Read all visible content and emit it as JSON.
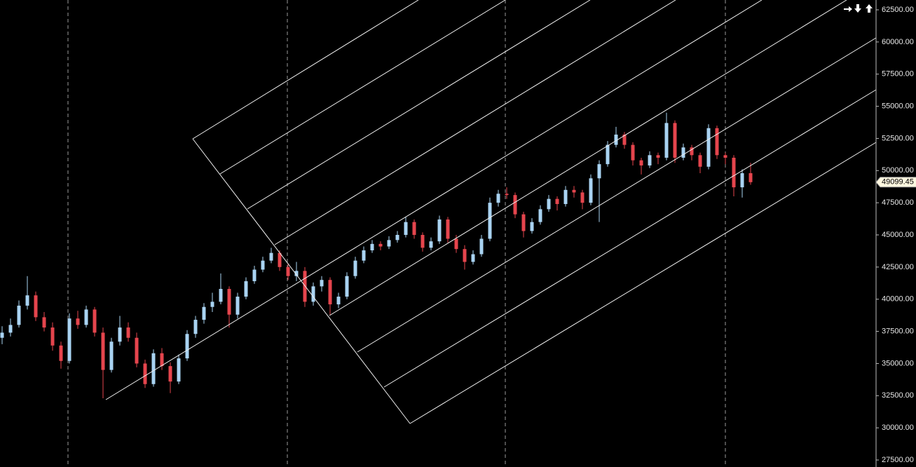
{
  "chart_data": {
    "type": "candlestick",
    "up_color": "#a9d3f2",
    "down_color": "#e5454d",
    "ylim": [
      26955,
      63263
    ],
    "yticks": [
      {
        "value": 27500,
        "label": "27500.00"
      },
      {
        "value": 30000,
        "label": "30000.00"
      },
      {
        "value": 32500,
        "label": "32500.00"
      },
      {
        "value": 35000,
        "label": "35000.00"
      },
      {
        "value": 37500,
        "label": "37500.00"
      },
      {
        "value": 40000,
        "label": "40000.00"
      },
      {
        "value": 42500,
        "label": "42500.00"
      },
      {
        "value": 45000,
        "label": "45000.00"
      },
      {
        "value": 47500,
        "label": "47500.00"
      },
      {
        "value": 50000,
        "label": "50000.00"
      },
      {
        "value": 52500,
        "label": "52500.00"
      },
      {
        "value": 55000,
        "label": "55000.00"
      },
      {
        "value": 57500,
        "label": "57500.00"
      },
      {
        "value": 60000,
        "label": "60000.00"
      },
      {
        "value": 62500,
        "label": "62500.00"
      }
    ],
    "candles": [
      [
        37000,
        37900,
        36500,
        37400
      ],
      [
        37400,
        38500,
        37100,
        38000
      ],
      [
        38000,
        39900,
        37800,
        39500
      ],
      [
        39500,
        41800,
        39200,
        40300
      ],
      [
        40300,
        40600,
        38300,
        38600
      ],
      [
        38600,
        39000,
        37500,
        37800
      ],
      [
        37800,
        38200,
        36000,
        36400
      ],
      [
        36400,
        36700,
        34600,
        35200
      ],
      [
        35200,
        38900,
        35000,
        38500
      ],
      [
        38500,
        39100,
        37700,
        38000
      ],
      [
        38000,
        39500,
        37800,
        39200
      ],
      [
        39200,
        39400,
        37100,
        37400
      ],
      [
        37400,
        37800,
        32300,
        34500
      ],
      [
        34500,
        37000,
        34300,
        36700
      ],
      [
        36700,
        38700,
        36400,
        37800
      ],
      [
        37800,
        38200,
        36700,
        37000
      ],
      [
        37000,
        37400,
        34700,
        35000
      ],
      [
        35000,
        35300,
        33100,
        33400
      ],
      [
        33400,
        36100,
        33200,
        35800
      ],
      [
        35800,
        36200,
        34500,
        34800
      ],
      [
        34800,
        35100,
        32700,
        33600
      ],
      [
        33600,
        35700,
        33400,
        35400
      ],
      [
        35400,
        37600,
        35200,
        37300
      ],
      [
        37300,
        38700,
        37000,
        38400
      ],
      [
        38400,
        39700,
        38100,
        39400
      ],
      [
        39400,
        40500,
        39000,
        39800
      ],
      [
        39800,
        42000,
        39600,
        40800
      ],
      [
        40800,
        41000,
        37800,
        38800
      ],
      [
        38800,
        40500,
        38500,
        40200
      ],
      [
        40200,
        41700,
        40000,
        41400
      ],
      [
        41400,
        42600,
        41200,
        42300
      ],
      [
        42300,
        43300,
        42100,
        43000
      ],
      [
        43000,
        44000,
        42800,
        43600
      ],
      [
        43600,
        43800,
        42200,
        42500
      ],
      [
        42500,
        42800,
        41500,
        41800
      ],
      [
        41800,
        42900,
        41400,
        42200
      ],
      [
        42200,
        42500,
        39400,
        39800
      ],
      [
        39800,
        41300,
        39500,
        41000
      ],
      [
        41000,
        41800,
        40600,
        41500
      ],
      [
        41500,
        41700,
        38800,
        39600
      ],
      [
        39600,
        40500,
        39300,
        40200
      ],
      [
        40200,
        42100,
        40000,
        41800
      ],
      [
        41800,
        43300,
        41600,
        43000
      ],
      [
        43000,
        44100,
        42800,
        43800
      ],
      [
        43800,
        44600,
        43600,
        44300
      ],
      [
        44300,
        44500,
        43800,
        44100
      ],
      [
        44100,
        44900,
        43900,
        44600
      ],
      [
        44600,
        45300,
        44400,
        45000
      ],
      [
        45000,
        46400,
        44800,
        46000
      ],
      [
        46000,
        46200,
        44700,
        45000
      ],
      [
        45000,
        45200,
        43700,
        44000
      ],
      [
        44000,
        44800,
        43800,
        44500
      ],
      [
        44500,
        46500,
        44300,
        46200
      ],
      [
        46200,
        46400,
        44400,
        44700
      ],
      [
        44700,
        45000,
        43600,
        43900
      ],
      [
        43900,
        44200,
        42300,
        42900
      ],
      [
        42900,
        43800,
        42700,
        43500
      ],
      [
        43500,
        45000,
        43300,
        44700
      ],
      [
        44700,
        47900,
        44500,
        47500
      ],
      [
        47500,
        48500,
        47200,
        48200
      ],
      [
        48200,
        48700,
        47800,
        48100
      ],
      [
        48100,
        48300,
        46300,
        46600
      ],
      [
        46600,
        46800,
        44800,
        45300
      ],
      [
        45300,
        46300,
        45100,
        46000
      ],
      [
        46000,
        47300,
        45800,
        47000
      ],
      [
        47000,
        48100,
        46800,
        47800
      ],
      [
        47800,
        48000,
        46900,
        47400
      ],
      [
        47400,
        48800,
        47200,
        48500
      ],
      [
        48500,
        48800,
        47900,
        48300
      ],
      [
        48300,
        48500,
        47000,
        47500
      ],
      [
        47500,
        49700,
        47300,
        49400
      ],
      [
        49400,
        50800,
        46000,
        50500
      ],
      [
        50500,
        52300,
        50300,
        52000
      ],
      [
        52000,
        53400,
        51800,
        52800
      ],
      [
        52800,
        53000,
        51700,
        52000
      ],
      [
        52000,
        52200,
        50400,
        50800
      ],
      [
        50800,
        51000,
        49700,
        50400
      ],
      [
        50400,
        51500,
        50200,
        51200
      ],
      [
        51200,
        51400,
        50500,
        51000
      ],
      [
        51000,
        54500,
        50800,
        53700
      ],
      [
        53700,
        53900,
        50600,
        51000
      ],
      [
        51000,
        52100,
        50800,
        51800
      ],
      [
        51800,
        52000,
        50800,
        51200
      ],
      [
        51200,
        51400,
        49800,
        50300
      ],
      [
        50300,
        53600,
        50100,
        53300
      ],
      [
        53300,
        53500,
        50900,
        51200
      ],
      [
        51200,
        51400,
        50500,
        51000
      ],
      [
        51000,
        51200,
        48000,
        48700
      ],
      [
        48700,
        50100,
        47900,
        49800
      ],
      [
        49800,
        50600,
        48900,
        49099.45
      ]
    ]
  }
}
